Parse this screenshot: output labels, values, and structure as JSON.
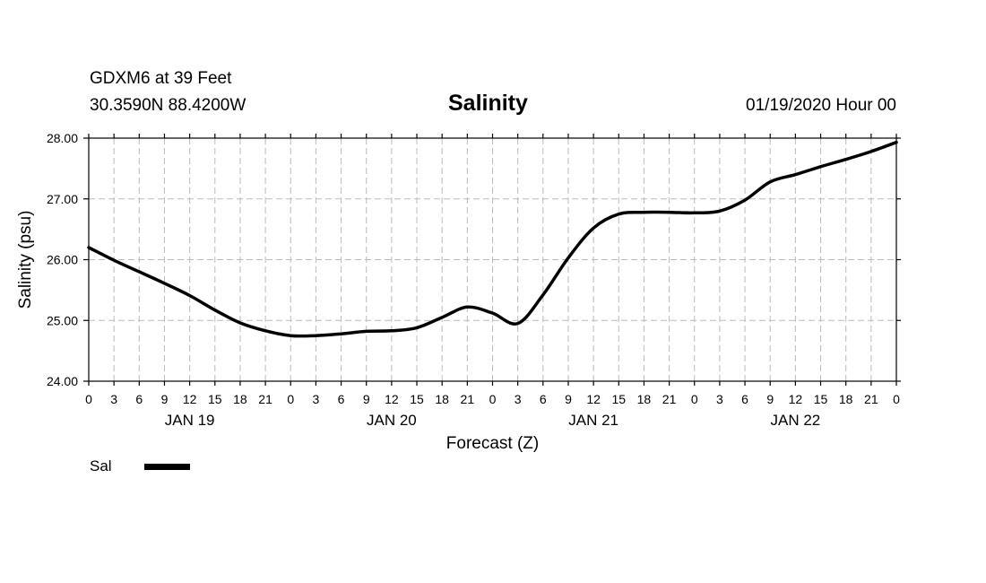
{
  "header": {
    "station": "GDXM6 at 39 Feet",
    "location": "30.3590N 88.4200W",
    "datetime": "01/19/2020 Hour 00"
  },
  "legend": {
    "label": "Sal",
    "color": "#000000"
  },
  "chart_data": {
    "type": "line",
    "title": "Salinity",
    "xlabel": "Forecast (Z)",
    "ylabel": "Salinity (psu)",
    "ylim": [
      24.0,
      28.0
    ],
    "y_ticks": [
      "24.00",
      "25.00",
      "26.00",
      "27.00",
      "28.00"
    ],
    "y_tick_values": [
      24,
      25,
      26,
      27,
      28
    ],
    "xlim": [
      0,
      96
    ],
    "x_tick_step_hours": 3,
    "x_tick_labels": [
      "0",
      "3",
      "6",
      "9",
      "12",
      "15",
      "18",
      "21",
      "0",
      "3",
      "6",
      "9",
      "12",
      "15",
      "18",
      "21",
      "0",
      "3",
      "6",
      "9",
      "12",
      "15",
      "18",
      "21",
      "0",
      "3",
      "6",
      "9",
      "12",
      "15",
      "18",
      "21",
      "0"
    ],
    "day_labels": [
      {
        "label": "JAN 19",
        "hour": 12
      },
      {
        "label": "JAN 20",
        "hour": 36
      },
      {
        "label": "JAN 21",
        "hour": 60
      },
      {
        "label": "JAN 22",
        "hour": 84
      }
    ],
    "grid": true,
    "series": [
      {
        "name": "Sal",
        "color": "#000000",
        "x": [
          0,
          3,
          6,
          9,
          12,
          15,
          18,
          21,
          24,
          27,
          30,
          33,
          36,
          39,
          42,
          45,
          48,
          51,
          54,
          57,
          60,
          63,
          66,
          69,
          72,
          75,
          78,
          81,
          84,
          87,
          90,
          93,
          96
        ],
        "values": [
          26.2,
          25.99,
          25.8,
          25.61,
          25.41,
          25.17,
          24.96,
          24.83,
          24.75,
          24.75,
          24.78,
          24.82,
          24.83,
          24.88,
          25.05,
          25.22,
          25.12,
          24.95,
          25.42,
          26.03,
          26.52,
          26.75,
          26.78,
          26.78,
          26.77,
          26.8,
          26.98,
          27.28,
          27.4,
          27.53,
          27.65,
          27.78,
          27.93
        ]
      }
    ]
  }
}
